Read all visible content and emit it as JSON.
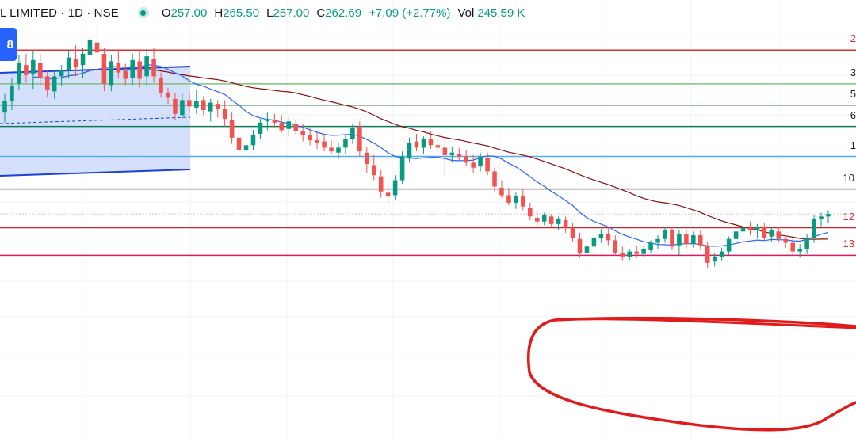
{
  "legend": {
    "title": "L LIMITED · 1D · NSE",
    "o_label": "O",
    "o_value": "257.00",
    "h_label": "H",
    "h_value": "265.50",
    "l_label": "L",
    "l_value": "257.00",
    "c_label": "C",
    "c_value": "262.69",
    "change": "+7.09 (+2.77%)",
    "vol_label": "Vol",
    "vol_value": "245.59 K"
  },
  "badge": {
    "text": "8"
  },
  "colors": {
    "up": "#089981",
    "down": "#f05350",
    "bg": "#ffffff",
    "ema_fast": "#2962ff",
    "ema_slow": "#880e0e",
    "channel_fill": "#c7d7fb",
    "channel_line": "#1e40d8",
    "annotation": "#e01b1b"
  },
  "price_labels": [
    {
      "text": "2",
      "color": "red"
    },
    {
      "text": "3",
      "color": "dark"
    },
    {
      "text": "5",
      "color": "dark"
    },
    {
      "text": "6",
      "color": "dark"
    },
    {
      "text": "1",
      "color": "dark"
    },
    {
      "text": "10",
      "color": "dark"
    },
    {
      "text": "12",
      "color": "red"
    },
    {
      "text": "13",
      "color": "red"
    }
  ],
  "chart_data": {
    "type": "candlestick",
    "ylim": [
      237,
      272
    ],
    "indicators": [
      "fast moving average (blue)",
      "slow moving average (dark red)"
    ],
    "horizontal_levels": [
      {
        "price": 268.0,
        "color": "#e03131"
      },
      {
        "price": 265.3,
        "color": "#7cc27c"
      },
      {
        "price": 263.6,
        "color": "#2e8b3a"
      },
      {
        "price": 261.9,
        "color": "#0b7a5a"
      },
      {
        "price": 259.5,
        "color": "#5aa8e8"
      },
      {
        "price": 256.9,
        "color": "#6b6b6b"
      },
      {
        "price": 254.9,
        "color": "#c9c9c9"
      },
      {
        "price": 253.8,
        "color": "#c62828"
      },
      {
        "price": 251.6,
        "color": "#d81b60"
      }
    ],
    "candles": [
      [
        263.0,
        264.5,
        262.2,
        263.9
      ],
      [
        263.9,
        265.8,
        263.2,
        265.1
      ],
      [
        265.3,
        267.6,
        264.8,
        267.0
      ],
      [
        266.8,
        267.7,
        265.4,
        266.0
      ],
      [
        266.1,
        267.9,
        264.9,
        267.2
      ],
      [
        267.0,
        267.7,
        265.2,
        265.8
      ],
      [
        265.9,
        266.4,
        264.2,
        264.8
      ],
      [
        264.7,
        266.3,
        264.1,
        265.9
      ],
      [
        265.9,
        266.8,
        265.1,
        266.4
      ],
      [
        266.4,
        268.0,
        265.7,
        267.4
      ],
      [
        267.3,
        268.4,
        265.9,
        266.6
      ],
      [
        266.8,
        268.2,
        265.8,
        267.7
      ],
      [
        267.6,
        269.6,
        266.5,
        268.8
      ],
      [
        268.6,
        269.9,
        267.0,
        267.8
      ],
      [
        267.7,
        268.2,
        264.7,
        265.3
      ],
      [
        265.2,
        267.6,
        264.7,
        267.1
      ],
      [
        267.0,
        267.9,
        265.7,
        266.2
      ],
      [
        266.3,
        266.9,
        265.2,
        265.7
      ],
      [
        265.8,
        267.7,
        265.2,
        267.2
      ],
      [
        267.1,
        267.9,
        265.0,
        265.7
      ],
      [
        265.9,
        268.1,
        265.1,
        267.5
      ],
      [
        267.3,
        268.2,
        265.4,
        265.9
      ],
      [
        265.8,
        266.2,
        264.2,
        264.6
      ],
      [
        264.6,
        265.0,
        263.7,
        264.2
      ],
      [
        264.1,
        264.6,
        262.4,
        262.9
      ],
      [
        262.8,
        264.5,
        262.5,
        264.0
      ],
      [
        264.0,
        264.6,
        263.0,
        263.5
      ],
      [
        263.4,
        264.8,
        262.9,
        263.9
      ],
      [
        264.0,
        264.3,
        262.8,
        263.2
      ],
      [
        263.1,
        264.1,
        262.3,
        263.8
      ],
      [
        263.7,
        264.0,
        262.6,
        263.3
      ],
      [
        263.3,
        264.0,
        261.9,
        262.5
      ],
      [
        262.4,
        263.0,
        260.5,
        261.0
      ],
      [
        261.0,
        261.6,
        259.6,
        260.0
      ],
      [
        260.0,
        261.1,
        259.3,
        260.4
      ],
      [
        260.4,
        261.6,
        260.0,
        261.2
      ],
      [
        261.3,
        262.5,
        260.9,
        262.2
      ],
      [
        262.3,
        263.0,
        261.6,
        262.5
      ],
      [
        262.4,
        262.9,
        261.8,
        262.2
      ],
      [
        262.2,
        262.8,
        261.4,
        261.6
      ],
      [
        261.7,
        262.6,
        261.1,
        262.3
      ],
      [
        262.1,
        262.4,
        261.2,
        261.5
      ],
      [
        261.5,
        262.1,
        260.7,
        261.2
      ],
      [
        261.2,
        261.8,
        260.4,
        260.8
      ],
      [
        260.8,
        261.4,
        260.1,
        260.6
      ],
      [
        260.7,
        261.2,
        259.9,
        260.2
      ],
      [
        260.2,
        260.8,
        259.7,
        259.9
      ],
      [
        259.8,
        260.6,
        259.3,
        260.2
      ],
      [
        260.2,
        261.3,
        259.7,
        260.9
      ],
      [
        260.9,
        262.1,
        260.5,
        261.8
      ],
      [
        261.9,
        262.3,
        259.5,
        259.9
      ],
      [
        259.8,
        260.3,
        258.2,
        258.9
      ],
      [
        258.8,
        259.6,
        257.6,
        258.0
      ],
      [
        257.9,
        258.4,
        256.2,
        256.7
      ],
      [
        256.6,
        257.2,
        255.7,
        256.3
      ],
      [
        256.4,
        258.0,
        256.0,
        257.6
      ],
      [
        257.6,
        259.9,
        257.3,
        259.5
      ],
      [
        259.4,
        261.0,
        259.0,
        260.6
      ],
      [
        260.7,
        261.3,
        259.9,
        260.2
      ],
      [
        260.2,
        261.1,
        259.7,
        260.9
      ],
      [
        260.9,
        261.5,
        260.1,
        260.4
      ],
      [
        260.4,
        261.0,
        259.8,
        260.2
      ],
      [
        260.2,
        261.0,
        257.9,
        259.6
      ],
      [
        259.6,
        260.3,
        259.0,
        259.8
      ],
      [
        259.7,
        260.2,
        259.2,
        259.5
      ],
      [
        259.5,
        260.0,
        258.7,
        259.0
      ],
      [
        259.0,
        259.6,
        258.2,
        258.6
      ],
      [
        258.7,
        259.8,
        258.3,
        259.5
      ],
      [
        259.4,
        259.8,
        258.0,
        258.3
      ],
      [
        258.3,
        258.6,
        256.6,
        257.1
      ],
      [
        257.0,
        257.6,
        256.2,
        256.4
      ],
      [
        256.4,
        257.0,
        255.6,
        255.8
      ],
      [
        255.8,
        256.6,
        255.3,
        256.3
      ],
      [
        256.3,
        256.9,
        255.2,
        255.5
      ],
      [
        255.4,
        255.8,
        254.4,
        254.7
      ],
      [
        254.6,
        255.2,
        253.9,
        254.3
      ],
      [
        254.3,
        255.0,
        254.0,
        254.8
      ],
      [
        254.7,
        254.9,
        253.8,
        254.1
      ],
      [
        254.1,
        254.7,
        253.6,
        254.5
      ],
      [
        254.4,
        254.7,
        253.4,
        253.8
      ],
      [
        253.8,
        254.2,
        252.7,
        253.0
      ],
      [
        252.9,
        253.4,
        251.4,
        251.8
      ],
      [
        251.8,
        252.5,
        251.3,
        252.3
      ],
      [
        252.3,
        253.4,
        252.0,
        253.0
      ],
      [
        253.0,
        253.7,
        252.6,
        253.3
      ],
      [
        253.3,
        253.8,
        252.4,
        252.8
      ],
      [
        252.8,
        253.2,
        251.6,
        251.8
      ],
      [
        251.8,
        252.3,
        251.2,
        251.5
      ],
      [
        251.5,
        252.1,
        251.2,
        251.9
      ],
      [
        251.9,
        252.4,
        251.4,
        251.7
      ],
      [
        251.7,
        252.3,
        251.4,
        252.1
      ],
      [
        252.0,
        252.8,
        251.8,
        252.6
      ],
      [
        252.6,
        253.2,
        252.1,
        252.9
      ],
      [
        252.9,
        253.9,
        252.6,
        253.6
      ],
      [
        253.6,
        253.9,
        252.0,
        252.3
      ],
      [
        252.4,
        253.6,
        251.6,
        253.3
      ],
      [
        253.3,
        253.7,
        252.1,
        252.5
      ],
      [
        252.5,
        253.5,
        252.2,
        253.2
      ],
      [
        253.2,
        253.6,
        252.1,
        252.4
      ],
      [
        252.4,
        252.7,
        250.6,
        251.0
      ],
      [
        251.1,
        251.8,
        250.7,
        251.5
      ],
      [
        251.5,
        252.2,
        251.2,
        251.9
      ],
      [
        251.9,
        253.1,
        251.6,
        252.9
      ],
      [
        252.9,
        253.7,
        252.5,
        253.5
      ],
      [
        253.5,
        254.0,
        253.0,
        253.8
      ],
      [
        253.8,
        254.3,
        253.2,
        253.6
      ],
      [
        253.6,
        254.1,
        253.0,
        253.9
      ],
      [
        253.9,
        254.2,
        252.8,
        253.0
      ],
      [
        253.1,
        253.9,
        252.7,
        253.6
      ],
      [
        253.5,
        253.9,
        252.6,
        252.9
      ],
      [
        252.9,
        253.2,
        252.2,
        252.6
      ],
      [
        252.6,
        253.0,
        251.6,
        251.9
      ],
      [
        251.9,
        252.5,
        251.4,
        252.1
      ],
      [
        252.1,
        253.3,
        251.7,
        253.0
      ],
      [
        253.0,
        254.8,
        252.6,
        254.5
      ],
      [
        254.5,
        255.0,
        253.9,
        254.7
      ],
      [
        254.7,
        255.2,
        254.2,
        254.9
      ]
    ]
  }
}
